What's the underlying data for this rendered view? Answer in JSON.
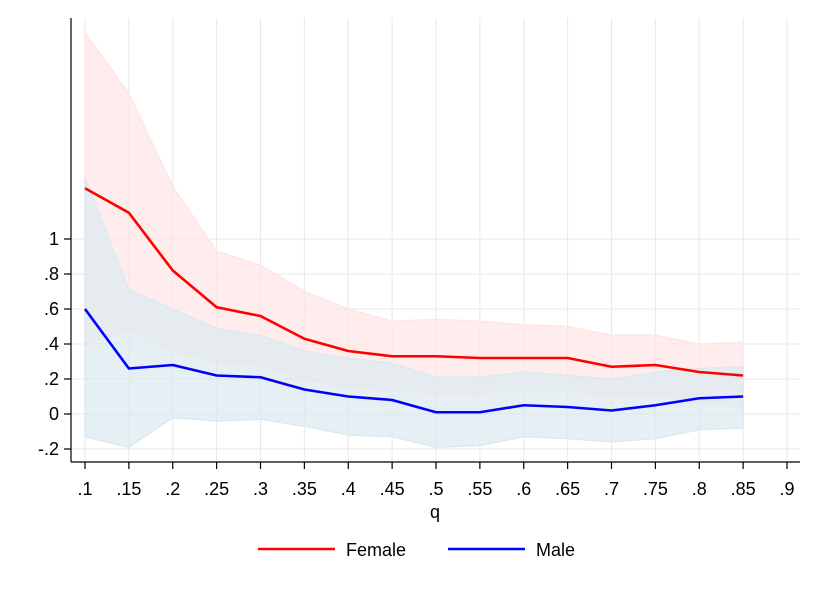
{
  "chart_data": {
    "type": "line",
    "xlabel": "q",
    "ylabel": "",
    "title": "",
    "x": [
      0.1,
      0.15,
      0.2,
      0.25,
      0.3,
      0.35,
      0.4,
      0.45,
      0.5,
      0.55,
      0.6,
      0.65,
      0.7,
      0.75,
      0.8,
      0.85
    ],
    "xlim": [
      0.1,
      0.9
    ],
    "ylim": [
      -0.25,
      2.2
    ],
    "x_ticks": [
      0.1,
      0.15,
      0.2,
      0.25,
      0.3,
      0.35,
      0.4,
      0.45,
      0.5,
      0.55,
      0.6,
      0.65,
      0.7,
      0.75,
      0.8,
      0.85,
      0.9
    ],
    "x_tick_labels": [
      ".1",
      ".15",
      ".2",
      ".25",
      ".3",
      ".35",
      ".4",
      ".45",
      ".5",
      ".55",
      ".6",
      ".65",
      ".7",
      ".75",
      ".8",
      ".85",
      ".9"
    ],
    "y_ticks": [
      -0.2,
      0,
      0.2,
      0.4,
      0.6,
      0.8,
      1
    ],
    "y_tick_labels": [
      "-.2",
      "0",
      ".2",
      ".4",
      ".6",
      ".8",
      "1"
    ],
    "grid": true,
    "legend_position": "bottom",
    "series": [
      {
        "name": "Female",
        "color": "#ff0000",
        "band_color": "#ffe5e5",
        "values": [
          1.29,
          1.15,
          0.82,
          0.61,
          0.56,
          0.43,
          0.36,
          0.33,
          0.33,
          0.32,
          0.32,
          0.32,
          0.27,
          0.28,
          0.24,
          0.22
        ],
        "ci_upper": [
          2.18,
          1.83,
          1.3,
          0.93,
          0.85,
          0.7,
          0.6,
          0.53,
          0.54,
          0.53,
          0.51,
          0.5,
          0.45,
          0.45,
          0.4,
          0.41
        ],
        "ci_lower": [
          0.4,
          0.48,
          0.36,
          0.3,
          0.28,
          0.2,
          0.15,
          0.14,
          0.12,
          0.12,
          0.14,
          0.14,
          0.1,
          0.11,
          0.07,
          0.04
        ]
      },
      {
        "name": "Male",
        "color": "#0000ff",
        "band_color": "#dce9f0",
        "values": [
          0.6,
          0.26,
          0.28,
          0.22,
          0.21,
          0.14,
          0.1,
          0.08,
          0.01,
          0.01,
          0.05,
          0.04,
          0.02,
          0.05,
          0.09,
          0.1
        ],
        "ci_upper": [
          1.35,
          0.71,
          0.6,
          0.49,
          0.45,
          0.36,
          0.32,
          0.29,
          0.21,
          0.21,
          0.24,
          0.22,
          0.2,
          0.24,
          0.26,
          0.27
        ],
        "ci_lower": [
          -0.13,
          -0.19,
          -0.02,
          -0.04,
          -0.03,
          -0.07,
          -0.12,
          -0.13,
          -0.19,
          -0.18,
          -0.13,
          -0.14,
          -0.16,
          -0.14,
          -0.09,
          -0.08
        ]
      }
    ]
  }
}
